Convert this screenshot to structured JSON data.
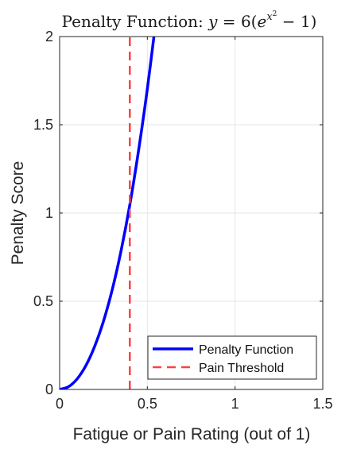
{
  "chart_data": {
    "type": "line",
    "title_prefix": "Penalty Function: ",
    "title_equation": {
      "lhs": "y",
      "eq": " = ",
      "coef": "6",
      "open": "(",
      "base": "e",
      "exp_var": "x",
      "exp_power": "2",
      "minus": " − ",
      "one": "1",
      "close": ")"
    },
    "xlabel": "Fatigue or Pain Rating (out of 1)",
    "ylabel": "Penalty Score",
    "xlim": [
      0,
      1.5
    ],
    "ylim": [
      0,
      2
    ],
    "xticks": [
      0,
      0.5,
      1,
      1.5
    ],
    "xtick_labels": [
      "0",
      "0.5",
      "1",
      "1.5"
    ],
    "yticks": [
      0,
      0.5,
      1,
      1.5,
      2
    ],
    "ytick_labels": [
      "0",
      "0.5",
      "1",
      "1.5",
      "2"
    ],
    "grid": true,
    "legend_position": "bottom-right",
    "series": [
      {
        "name": "Penalty Function",
        "style": "solid",
        "color": "#0000ff",
        "x": [
          0,
          0.05,
          0.1,
          0.15,
          0.2,
          0.25,
          0.3,
          0.35,
          0.4,
          0.45,
          0.5,
          0.55
        ],
        "y": [
          0,
          0.015,
          0.06,
          0.136,
          0.245,
          0.387,
          0.566,
          0.785,
          1.046,
          1.355,
          1.704,
          2.101
        ]
      },
      {
        "name": "Pain Threshold",
        "style": "dashed",
        "color": "#ff4040",
        "x": [
          0.4,
          0.4
        ],
        "y": [
          0,
          2
        ]
      }
    ]
  }
}
